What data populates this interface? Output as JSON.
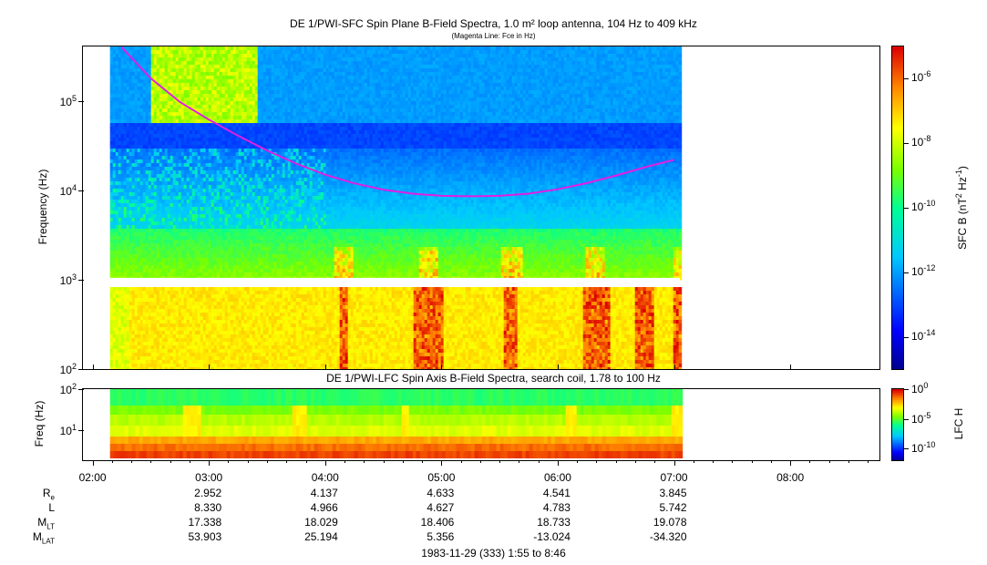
{
  "chart_data": [
    {
      "type": "heatmap",
      "title": "DE 1/PWI-SFC  Spin Plane B-Field Spectra, 1.0 m² loop antenna, 104 Hz to 409 kHz",
      "subtitle": "(Magenta Line: Fce in Hz)",
      "ylabel": "Frequency (Hz)",
      "yscale": "log",
      "ylim": [
        100,
        409000
      ],
      "yticks": [
        {
          "label": "10",
          "exp": "2"
        },
        {
          "label": "10",
          "exp": "3"
        },
        {
          "label": "10",
          "exp": "4"
        },
        {
          "label": "10",
          "exp": "5"
        }
      ],
      "xlim_hours": [
        1.917,
        8.767
      ],
      "data_range_hours": [
        2.15,
        7.05
      ],
      "gap_frequency_hz": [
        900,
        1050
      ],
      "colorbar": {
        "label": "SFC B (nT",
        "label_exp1": "2",
        "label_mid": " Hz",
        "label_exp2": "-1",
        "label_end": ")",
        "scale": "log",
        "range": [
          1e-15,
          1e-05
        ],
        "ticks": [
          {
            "label": "10",
            "exp": "-6"
          },
          {
            "label": "10",
            "exp": "-8"
          },
          {
            "label": "10",
            "exp": "-10"
          },
          {
            "label": "10",
            "exp": "-12"
          },
          {
            "label": "10",
            "exp": "-14"
          }
        ]
      },
      "fce_line": {
        "color": "#e020e0",
        "hours": [
          2.25,
          2.5,
          2.75,
          3.0,
          3.25,
          3.5,
          3.75,
          4.0,
          4.25,
          4.5,
          4.75,
          5.0,
          5.25,
          5.5,
          5.75,
          6.0,
          6.25,
          6.5,
          6.75,
          7.0
        ],
        "fce_hz": [
          400000,
          180000,
          98000,
          62000,
          41000,
          28000,
          20000,
          15000,
          12000,
          10200,
          9200,
          8700,
          8600,
          8700,
          9200,
          10300,
          12100,
          14700,
          18200,
          22000
        ],
        "gaps_hours": [
          [
            3.5,
            3.6
          ]
        ]
      }
    },
    {
      "type": "heatmap",
      "title": "DE 1/PWI-LFC  Spin Axis B-Field Spectra, search coil, 1.78 to 100 Hz",
      "ylabel": "Freq (Hz)",
      "yscale": "log",
      "ylim": [
        1.78,
        100
      ],
      "yticks": [
        {
          "label": "10",
          "exp": "2"
        },
        {
          "label": "10",
          "exp": "1"
        }
      ],
      "colorbar": {
        "label": "LFC H",
        "scale": "log",
        "range": [
          1e-12,
          1
        ],
        "ticks": [
          {
            "label": "10",
            "exp": "0"
          },
          {
            "label": "10",
            "exp": "-5"
          },
          {
            "label": "10",
            "exp": "-10"
          }
        ]
      }
    }
  ],
  "x_axis": {
    "ticks": [
      "02:00",
      "03:00",
      "04:00",
      "05:00",
      "06:00",
      "07:00",
      "08:00"
    ]
  },
  "ephemeris": {
    "rows": [
      {
        "label": "R",
        "sub": "e",
        "values": [
          "2.952",
          "4.137",
          "4.633",
          "4.541",
          "3.845"
        ]
      },
      {
        "label": "L",
        "sub": "",
        "values": [
          "8.330",
          "4.966",
          "4.627",
          "4.783",
          "5.742"
        ]
      },
      {
        "label": "M",
        "sub": "LT",
        "values": [
          "17.338",
          "18.029",
          "18.406",
          "18.733",
          "19.078"
        ]
      },
      {
        "label": "M",
        "sub": "LAT",
        "values": [
          "53.903",
          "25.194",
          "5.356",
          "-13.024",
          "-34.320"
        ]
      }
    ]
  },
  "footer": "1983-11-29 (333) 1:55 to 8:46"
}
